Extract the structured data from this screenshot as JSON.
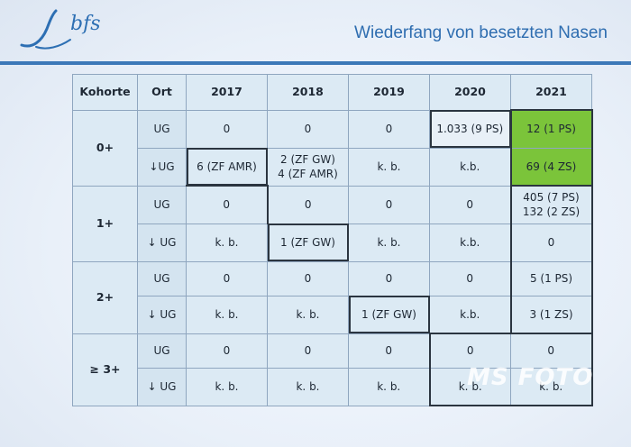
{
  "header": {
    "logo_text": "bfs",
    "title": "Wiederfang von besetzten Nasen"
  },
  "table": {
    "columns": [
      "Kohorte",
      "Ort",
      "2017",
      "2018",
      "2019",
      "2020",
      "2021"
    ],
    "cohorts": [
      {
        "label": "0+",
        "rows": [
          {
            "ort": "UG",
            "values": [
              "0",
              "0",
              "0",
              "1.033 (9 PS)",
              "12 (1 PS)"
            ]
          },
          {
            "ort": "↓UG",
            "values": [
              "6 (ZF AMR)",
              "2 (ZF GW)\n4 (ZF AMR)",
              "k. b.",
              "k.b.",
              "69 (4 ZS)"
            ]
          }
        ]
      },
      {
        "label": "1+",
        "rows": [
          {
            "ort": "UG",
            "values": [
              "0",
              "0",
              "0",
              "0",
              "405 (7 PS)\n132 (2 ZS)"
            ]
          },
          {
            "ort": "↓ UG",
            "values": [
              "k. b.",
              "1 (ZF GW)",
              "k. b.",
              "k.b.",
              "0"
            ]
          }
        ]
      },
      {
        "label": "2+",
        "rows": [
          {
            "ort": "UG",
            "values": [
              "0",
              "0",
              "0",
              "0",
              "5 (1 PS)"
            ]
          },
          {
            "ort": "↓ UG",
            "values": [
              "k. b.",
              "k. b.",
              "1 (ZF GW)",
              "k.b.",
              "3 (1 ZS)"
            ]
          }
        ]
      },
      {
        "label": "≥ 3+",
        "rows": [
          {
            "ort": "UG",
            "values": [
              "0",
              "0",
              "0",
              "0",
              "0"
            ]
          },
          {
            "ort": "↓ UG",
            "values": [
              "k. b.",
              "k. b.",
              "k. b.",
              "k. b.",
              "k. b."
            ]
          }
        ]
      }
    ]
  },
  "colors": {
    "title": "#2e6db0",
    "rule": "#3c78b8",
    "cell": "#dceaf4",
    "highlight_green": "#7bc43a"
  },
  "watermark": "MS FOTO"
}
